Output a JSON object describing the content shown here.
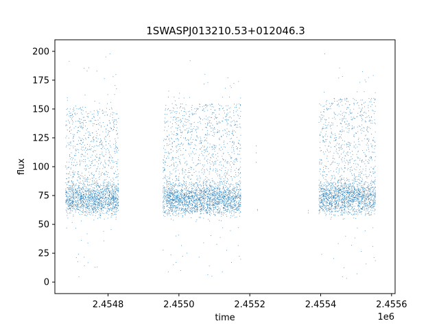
{
  "chart_data": {
    "type": "scatter",
    "title": "1SWASPJ013210.53+012046.3",
    "xlabel": "time",
    "ylabel": "flux",
    "x_offset_label": "1e6",
    "xlim": [
      2454650,
      2455610
    ],
    "ylim": [
      -10,
      210
    ],
    "x_ticks": [
      2454800,
      2455000,
      2455200,
      2455400,
      2455600
    ],
    "x_tick_labels": [
      "2.4548",
      "2.4550",
      "2.4552",
      "2.4554",
      "2.4556"
    ],
    "y_ticks": [
      0,
      25,
      50,
      75,
      100,
      125,
      150,
      175,
      200
    ],
    "y_tick_labels": [
      "0",
      "25",
      "50",
      "75",
      "100",
      "125",
      "150",
      "175",
      "200"
    ],
    "grid": false,
    "point_color": "#1f77b4",
    "observing_seasons": [
      {
        "x_start": 2454680,
        "x_end": 2454830,
        "flux_min": 3,
        "flux_max": 198,
        "flux_core": [
          62,
          152
        ],
        "baseline": 72
      },
      {
        "x_start": 2454955,
        "x_end": 2455175,
        "flux_min": 2,
        "flux_max": 193,
        "flux_core": [
          60,
          155
        ],
        "baseline": 72
      },
      {
        "x_start": 2455395,
        "x_end": 2455555,
        "flux_min": 0,
        "flux_max": 199,
        "flux_core": [
          58,
          160
        ],
        "baseline": 74
      }
    ],
    "sparse_points": [
      {
        "x": 2455218,
        "y": 118
      },
      {
        "x": 2455218,
        "y": 112
      },
      {
        "x": 2455218,
        "y": 104
      },
      {
        "x": 2455222,
        "y": 63
      },
      {
        "x": 2455222,
        "y": 62
      },
      {
        "x": 2455365,
        "y": 62
      },
      {
        "x": 2455365,
        "y": 60
      }
    ]
  }
}
